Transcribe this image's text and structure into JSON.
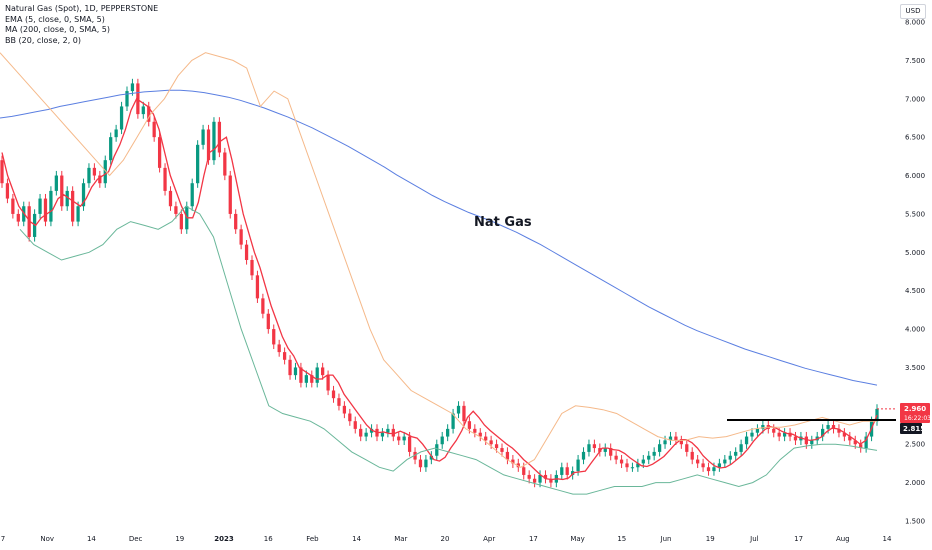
{
  "legend": {
    "title": "Natural Gas (Spot), 1D, PEPPERSTONE",
    "ema": "EMA (5, close, 0, SMA, 5)",
    "ma": "MA (200, close, 0, SMA, 5)",
    "bb": "BB (20, close, 2, 0)"
  },
  "currency": "USD",
  "annotation": "Nat Gas",
  "price_badge": {
    "price": "2.960",
    "time": "16:22:03",
    "color": "#f23645"
  },
  "level_badge": {
    "price": "2.815",
    "color": "#131722"
  },
  "colors": {
    "up": "#089981",
    "down": "#f23645",
    "ema": "#f23645",
    "ma": "#5b7fe1",
    "bb_upper": "#f5b98a",
    "bb_lower": "#6ab79a",
    "level": "#000000"
  },
  "chart_data": {
    "type": "line",
    "title": "Natural Gas (Spot), 1D, PEPPERSTONE",
    "ylim": [
      1.5,
      8.0
    ],
    "y_ticks": [
      "1.500",
      "2.000",
      "2.500",
      "3.000",
      "3.500",
      "4.000",
      "4.500",
      "5.000",
      "5.500",
      "6.000",
      "6.500",
      "7.000",
      "7.500",
      "8.000"
    ],
    "x_ticks": [
      "7",
      "Nov",
      "14",
      "Dec",
      "19",
      "2023",
      "16",
      "Feb",
      "14",
      "Mar",
      "20",
      "Apr",
      "17",
      "May",
      "15",
      "Jun",
      "19",
      "Jul",
      "17",
      "Aug",
      "14"
    ],
    "horizontal_level": 2.815,
    "last_price": 2.96,
    "candles": {
      "open": [
        6.2,
        5.9,
        5.7,
        5.5,
        5.4,
        5.6,
        5.2,
        5.5,
        5.7,
        5.4,
        5.8,
        6.0,
        5.6,
        5.8,
        5.4,
        5.6,
        5.9,
        6.1,
        6.0,
        5.9,
        6.2,
        6.5,
        6.6,
        6.9,
        7.1,
        7.2,
        6.8,
        6.9,
        6.7,
        6.5,
        6.1,
        5.8,
        5.6,
        5.5,
        5.3,
        5.6,
        5.9,
        6.4,
        6.6,
        6.2,
        6.7,
        6.3,
        6.0,
        5.5,
        5.3,
        5.1,
        4.9,
        4.7,
        4.4,
        4.2,
        4.0,
        3.8,
        3.7,
        3.6,
        3.4,
        3.5,
        3.3,
        3.4,
        3.3,
        3.5,
        3.4,
        3.2,
        3.1,
        3.0,
        2.9,
        2.8,
        2.7,
        2.6,
        2.65,
        2.7,
        2.6,
        2.65,
        2.7,
        2.6,
        2.55,
        2.6,
        2.4,
        2.3,
        2.2,
        2.3,
        2.35,
        2.5,
        2.6,
        2.7,
        2.9,
        3.0,
        2.8,
        2.7,
        2.65,
        2.6,
        2.55,
        2.5,
        2.45,
        2.4,
        2.3,
        2.25,
        2.2,
        2.1,
        2.05,
        2.0,
        2.1,
        2.05,
        2.0,
        2.1,
        2.2,
        2.1,
        2.15,
        2.3,
        2.4,
        2.5,
        2.45,
        2.4,
        2.45,
        2.35,
        2.3,
        2.25,
        2.2,
        2.2,
        2.25,
        2.3,
        2.35,
        2.4,
        2.5,
        2.55,
        2.6,
        2.55,
        2.5,
        2.4,
        2.3,
        2.25,
        2.2,
        2.15,
        2.2,
        2.25,
        2.3,
        2.35,
        2.4,
        2.5,
        2.6,
        2.65,
        2.7,
        2.75,
        2.7,
        2.65,
        2.6,
        2.65,
        2.6,
        2.55,
        2.6,
        2.5,
        2.55,
        2.6,
        2.7,
        2.75,
        2.7,
        2.65,
        2.6,
        2.55,
        2.5,
        2.45,
        2.6,
        2.8
      ],
      "close": [
        5.9,
        5.7,
        5.5,
        5.4,
        5.6,
        5.2,
        5.5,
        5.7,
        5.4,
        5.8,
        6.0,
        5.6,
        5.8,
        5.4,
        5.6,
        5.9,
        6.1,
        6.0,
        5.9,
        6.2,
        6.5,
        6.6,
        6.9,
        7.1,
        7.2,
        6.8,
        6.9,
        6.7,
        6.5,
        6.1,
        5.8,
        5.6,
        5.5,
        5.3,
        5.6,
        5.9,
        6.4,
        6.6,
        6.2,
        6.7,
        6.3,
        6.0,
        5.5,
        5.3,
        5.1,
        4.9,
        4.7,
        4.4,
        4.2,
        4.0,
        3.8,
        3.7,
        3.6,
        3.4,
        3.5,
        3.3,
        3.4,
        3.3,
        3.5,
        3.4,
        3.2,
        3.1,
        3.0,
        2.9,
        2.8,
        2.7,
        2.6,
        2.65,
        2.7,
        2.6,
        2.65,
        2.7,
        2.6,
        2.55,
        2.6,
        2.4,
        2.3,
        2.2,
        2.3,
        2.35,
        2.5,
        2.6,
        2.7,
        2.9,
        3.0,
        2.8,
        2.7,
        2.65,
        2.6,
        2.55,
        2.5,
        2.45,
        2.4,
        2.3,
        2.25,
        2.2,
        2.1,
        2.05,
        2.0,
        2.1,
        2.05,
        2.0,
        2.1,
        2.2,
        2.1,
        2.15,
        2.3,
        2.4,
        2.5,
        2.45,
        2.4,
        2.45,
        2.35,
        2.3,
        2.25,
        2.2,
        2.2,
        2.25,
        2.3,
        2.35,
        2.4,
        2.5,
        2.55,
        2.6,
        2.55,
        2.5,
        2.4,
        2.3,
        2.25,
        2.2,
        2.15,
        2.2,
        2.25,
        2.3,
        2.35,
        2.4,
        2.5,
        2.6,
        2.65,
        2.7,
        2.75,
        2.7,
        2.65,
        2.6,
        2.65,
        2.6,
        2.55,
        2.6,
        2.5,
        2.55,
        2.6,
        2.7,
        2.75,
        2.7,
        2.65,
        2.6,
        2.55,
        2.5,
        2.45,
        2.6,
        2.8,
        2.96
      ]
    },
    "series": [
      {
        "name": "EMA (5, close, 0, SMA, 5)",
        "values": [
          6.3,
          6.0,
          5.8,
          5.6,
          5.5,
          5.4,
          5.35,
          5.45,
          5.5,
          5.55,
          5.7,
          5.75,
          5.7,
          5.65,
          5.6,
          5.7,
          5.85,
          5.95,
          6.0,
          6.05,
          6.25,
          6.4,
          6.6,
          6.85,
          7.0,
          6.95,
          6.9,
          6.8,
          6.6,
          6.3,
          6.0,
          5.8,
          5.6,
          5.45,
          5.45,
          5.65,
          6.0,
          6.3,
          6.35,
          6.45,
          6.5,
          6.2,
          5.85,
          5.5,
          5.25,
          5.0,
          4.8,
          4.55,
          4.3,
          4.1,
          3.9,
          3.75,
          3.65,
          3.5,
          3.45,
          3.4,
          3.35,
          3.35,
          3.4,
          3.4,
          3.3,
          3.15,
          3.05,
          2.95,
          2.85,
          2.75,
          2.68,
          2.65,
          2.66,
          2.64,
          2.64,
          2.67,
          2.64,
          2.6,
          2.58,
          2.5,
          2.4,
          2.3,
          2.28,
          2.33,
          2.45,
          2.55,
          2.68,
          2.85,
          2.93,
          2.85,
          2.75,
          2.68,
          2.62,
          2.56,
          2.5,
          2.45,
          2.38,
          2.3,
          2.24,
          2.17,
          2.1,
          2.05,
          2.04,
          2.05,
          2.04,
          2.06,
          2.13,
          2.14,
          2.15,
          2.25,
          2.35,
          2.45,
          2.45,
          2.43,
          2.42,
          2.38,
          2.32,
          2.27,
          2.22,
          2.21,
          2.24,
          2.29,
          2.34,
          2.42,
          2.5,
          2.56,
          2.56,
          2.52,
          2.45,
          2.35,
          2.28,
          2.22,
          2.19,
          2.2,
          2.24,
          2.3,
          2.36,
          2.44,
          2.54,
          2.62,
          2.69,
          2.73,
          2.71,
          2.67,
          2.64,
          2.63,
          2.59,
          2.57,
          2.55,
          2.56,
          2.59,
          2.66,
          2.71,
          2.7,
          2.66,
          2.61,
          2.56,
          2.5,
          2.55,
          2.7,
          2.88
        ]
      },
      {
        "name": "MA (200, close, 0, SMA, 5)",
        "values": [
          6.75,
          6.77,
          6.8,
          6.83,
          6.86,
          6.9,
          6.93,
          6.96,
          6.99,
          7.02,
          7.05,
          7.07,
          7.09,
          7.1,
          7.11,
          7.11,
          7.1,
          7.08,
          7.05,
          7.02,
          6.98,
          6.93,
          6.88,
          6.82,
          6.76,
          6.69,
          6.62,
          6.54,
          6.46,
          6.38,
          6.29,
          6.2,
          6.11,
          6.01,
          5.92,
          5.83,
          5.74,
          5.66,
          5.59,
          5.52,
          5.46,
          5.4,
          5.33,
          5.26,
          5.18,
          5.1,
          5.01,
          4.92,
          4.83,
          4.74,
          4.65,
          4.56,
          4.47,
          4.38,
          4.29,
          4.21,
          4.13,
          4.05,
          3.98,
          3.92,
          3.86,
          3.8,
          3.74,
          3.69,
          3.64,
          3.59,
          3.54,
          3.49,
          3.45,
          3.41,
          3.37,
          3.33,
          3.3,
          3.27
        ]
      },
      {
        "name": "BB upper",
        "values": [
          7.6,
          7.4,
          7.2,
          7.0,
          6.8,
          6.6,
          6.4,
          6.2,
          6.0,
          6.2,
          6.5,
          6.8,
          7.0,
          7.3,
          7.5,
          7.6,
          7.55,
          7.5,
          7.4,
          6.9,
          7.1,
          7.0,
          6.5,
          6.0,
          5.5,
          5.0,
          4.5,
          4.0,
          3.6,
          3.4,
          3.2,
          3.1,
          3.0,
          2.9,
          2.7,
          2.6,
          2.45,
          2.3,
          2.2,
          2.3,
          2.6,
          2.9,
          3.0,
          2.98,
          2.95,
          2.9,
          2.8,
          2.7,
          2.6,
          2.55,
          2.55,
          2.6,
          2.58,
          2.6,
          2.65,
          2.7,
          2.72,
          2.72,
          2.75,
          2.8,
          2.85,
          2.8,
          2.75,
          2.8,
          2.8
        ]
      },
      {
        "name": "BB lower",
        "values": [
          5.3,
          5.1,
          5.0,
          4.9,
          4.95,
          5.0,
          5.1,
          5.3,
          5.4,
          5.35,
          5.3,
          5.4,
          5.6,
          5.5,
          5.2,
          4.6,
          4.0,
          3.5,
          3.0,
          2.9,
          2.85,
          2.8,
          2.7,
          2.55,
          2.4,
          2.3,
          2.2,
          2.15,
          2.3,
          2.4,
          2.45,
          2.4,
          2.35,
          2.3,
          2.2,
          2.1,
          2.05,
          2.0,
          1.95,
          1.9,
          1.85,
          1.85,
          1.9,
          1.95,
          1.95,
          1.95,
          2.0,
          2.0,
          2.05,
          2.1,
          2.05,
          2.0,
          1.95,
          2.0,
          2.1,
          2.3,
          2.45,
          2.48,
          2.5,
          2.5,
          2.48,
          2.45,
          2.42
        ]
      }
    ]
  }
}
